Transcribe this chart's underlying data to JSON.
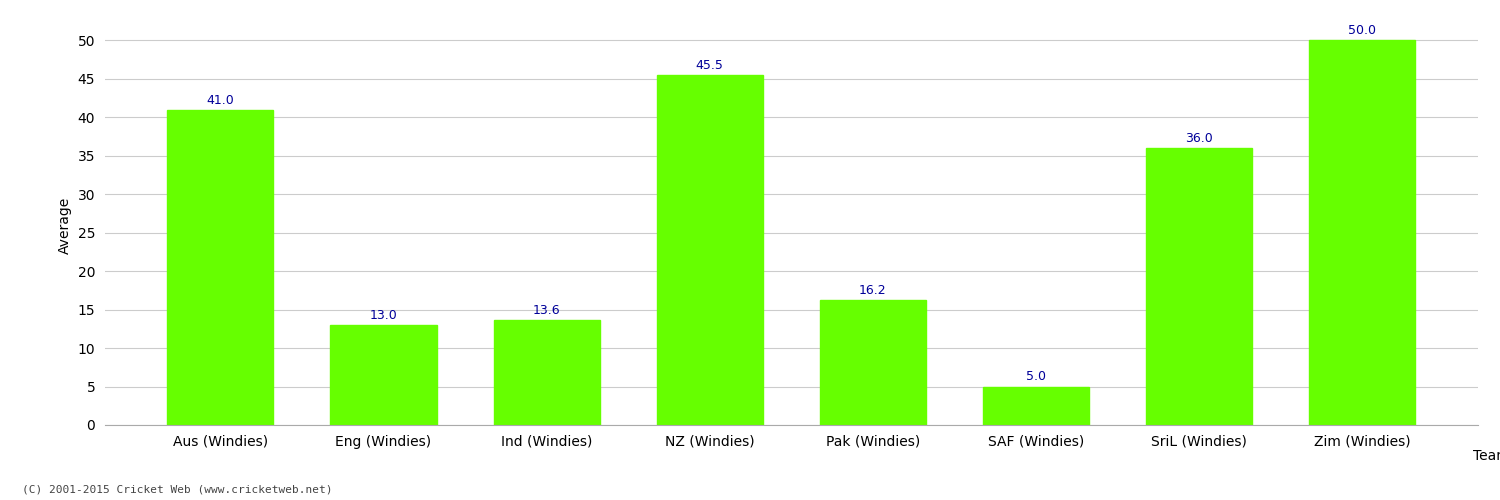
{
  "categories": [
    "Aus (Windies)",
    "Eng (Windies)",
    "Ind (Windies)",
    "NZ (Windies)",
    "Pak (Windies)",
    "SAF (Windies)",
    "SriL (Windies)",
    "Zim (Windies)"
  ],
  "values": [
    41.0,
    13.0,
    13.6,
    45.5,
    16.2,
    5.0,
    36.0,
    50.0
  ],
  "bar_color": "#66ff00",
  "bar_edge_color": "#66ff00",
  "value_color": "#000099",
  "ylabel": "Average",
  "xlabel": "Team",
  "ylim": [
    0,
    52
  ],
  "yticks": [
    0,
    5,
    10,
    15,
    20,
    25,
    30,
    35,
    40,
    45,
    50
  ],
  "grid_color": "#cccccc",
  "background_color": "#ffffff",
  "value_fontsize": 9,
  "label_fontsize": 10,
  "footer_text": "(C) 2001-2015 Cricket Web (www.cricketweb.net)"
}
